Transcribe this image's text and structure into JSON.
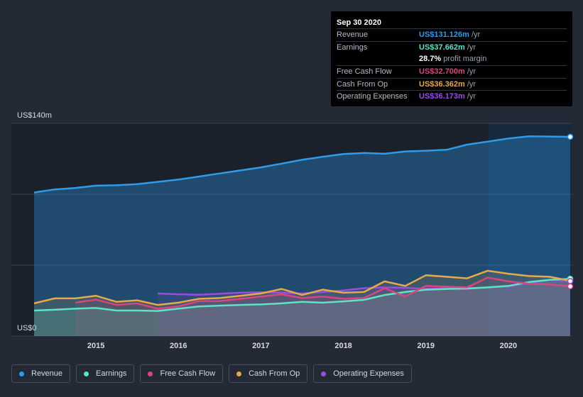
{
  "tooltip": {
    "date": "Sep 30 2020",
    "rows": [
      {
        "label": "Revenue",
        "value": "US$131.126m",
        "unit": "/yr",
        "color": "#2f9bea"
      },
      {
        "label": "Earnings",
        "value": "US$37.662m",
        "unit": "/yr",
        "color": "#5fe3c6"
      },
      {
        "label": "",
        "value": "28.7%",
        "unit": "profit margin",
        "color": "#ffffff"
      },
      {
        "label": "Free Cash Flow",
        "value": "US$32.700m",
        "unit": "/yr",
        "color": "#d9467f"
      },
      {
        "label": "Cash From Op",
        "value": "US$36.362m",
        "unit": "/yr",
        "color": "#e8a94a"
      },
      {
        "label": "Operating Expenses",
        "value": "US$36.173m",
        "unit": "/yr",
        "color": "#9b4de0"
      }
    ]
  },
  "chart_data": {
    "type": "line",
    "ylabel_top": "US$140m",
    "ylabel_bottom": "US$0",
    "ylim": [
      0,
      140
    ],
    "xlim": [
      2014.25,
      2020.75
    ],
    "x_ticks": [
      "2015",
      "2016",
      "2017",
      "2018",
      "2019",
      "2020"
    ],
    "x_tick_values": [
      2015,
      2016,
      2017,
      2018,
      2019,
      2020
    ],
    "grid": true,
    "legend_position": "bottom",
    "series": [
      {
        "name": "Revenue",
        "color": "#2f9bea",
        "x": [
          2014.25,
          2014.5,
          2014.75,
          2015.0,
          2015.25,
          2015.5,
          2015.75,
          2016.0,
          2016.25,
          2016.5,
          2016.75,
          2017.0,
          2017.25,
          2017.5,
          2017.75,
          2018.0,
          2018.25,
          2018.5,
          2018.75,
          2019.0,
          2019.25,
          2019.5,
          2019.75,
          2020.0,
          2020.25,
          2020.5,
          2020.75
        ],
        "values": [
          94.5,
          96.5,
          97.5,
          99,
          99.3,
          100,
          101.5,
          103,
          105,
          107,
          109,
          111,
          113.5,
          116,
          118,
          119.8,
          120.5,
          120,
          121.5,
          122,
          122.6,
          126,
          128,
          130,
          131.5,
          131.3,
          131.126
        ]
      },
      {
        "name": "Earnings",
        "color": "#5fe3c6",
        "x": [
          2014.25,
          2014.5,
          2014.75,
          2015.0,
          2015.25,
          2015.5,
          2015.75,
          2016.0,
          2016.25,
          2016.5,
          2016.75,
          2017.0,
          2017.25,
          2017.5,
          2017.75,
          2018.0,
          2018.25,
          2018.5,
          2018.75,
          2019.0,
          2019.25,
          2019.5,
          2019.75,
          2020.0,
          2020.25,
          2020.5,
          2020.75
        ],
        "values": [
          16.8,
          17.3,
          18,
          18.5,
          16.8,
          16.8,
          16.5,
          18,
          19.5,
          20,
          20.5,
          20.8,
          21.5,
          22.5,
          22,
          22.8,
          23.8,
          27,
          29,
          30.5,
          31,
          31.3,
          32,
          33,
          35.5,
          37,
          37.662
        ]
      },
      {
        "name": "Free Cash Flow",
        "color": "#d9467f",
        "x": [
          2014.75,
          2015.0,
          2015.25,
          2015.5,
          2015.75,
          2016.0,
          2016.25,
          2016.5,
          2016.75,
          2017.0,
          2017.25,
          2017.5,
          2017.75,
          2018.0,
          2018.25,
          2018.5,
          2018.75,
          2019.0,
          2019.25,
          2019.5,
          2019.75,
          2020.0,
          2020.25,
          2020.5,
          2020.75
        ],
        "values": [
          22,
          24,
          20.5,
          21.5,
          18,
          19.5,
          23,
          23,
          24.5,
          26,
          27.5,
          25,
          26,
          24.5,
          25,
          31.5,
          26,
          33,
          32.5,
          32,
          38.5,
          36,
          34.5,
          34,
          32.7
        ]
      },
      {
        "name": "Cash From Op",
        "color": "#e8a94a",
        "x": [
          2014.25,
          2014.5,
          2014.75,
          2015.0,
          2015.25,
          2015.5,
          2015.75,
          2016.0,
          2016.25,
          2016.5,
          2016.75,
          2017.0,
          2017.25,
          2017.5,
          2017.75,
          2018.0,
          2018.25,
          2018.5,
          2018.75,
          2019.0,
          2019.25,
          2019.5,
          2019.75,
          2020.0,
          2020.25,
          2020.5,
          2020.75
        ],
        "values": [
          21.5,
          24.8,
          24.8,
          26.5,
          22.5,
          23.5,
          20.5,
          22,
          24.5,
          25,
          26.5,
          28,
          31,
          27,
          30.5,
          28.5,
          29,
          36,
          33,
          40,
          39,
          38,
          43,
          41,
          39.5,
          39,
          36.362
        ]
      },
      {
        "name": "Operating Expenses",
        "color": "#9b4de0",
        "x": [
          2015.75,
          2016.0,
          2016.25,
          2016.5,
          2016.75,
          2017.0,
          2017.25,
          2017.5,
          2017.75,
          2018.0,
          2018.25,
          2018.5,
          2018.75,
          2019.0,
          2019.25,
          2019.5,
          2019.75,
          2020.0,
          2020.25,
          2020.5,
          2020.75
        ],
        "values": [
          28,
          27.5,
          27.2,
          27.8,
          28.5,
          28.8,
          28.5,
          28,
          29,
          30,
          31.5,
          32,
          31.8,
          31,
          31.3,
          31,
          32,
          32.5,
          35,
          37,
          36.173
        ]
      }
    ]
  },
  "legend": [
    {
      "label": "Revenue",
      "color": "#2f9bea"
    },
    {
      "label": "Earnings",
      "color": "#5fe3c6"
    },
    {
      "label": "Free Cash Flow",
      "color": "#d9467f"
    },
    {
      "label": "Cash From Op",
      "color": "#e8a94a"
    },
    {
      "label": "Operating Expenses",
      "color": "#9b4de0"
    }
  ]
}
